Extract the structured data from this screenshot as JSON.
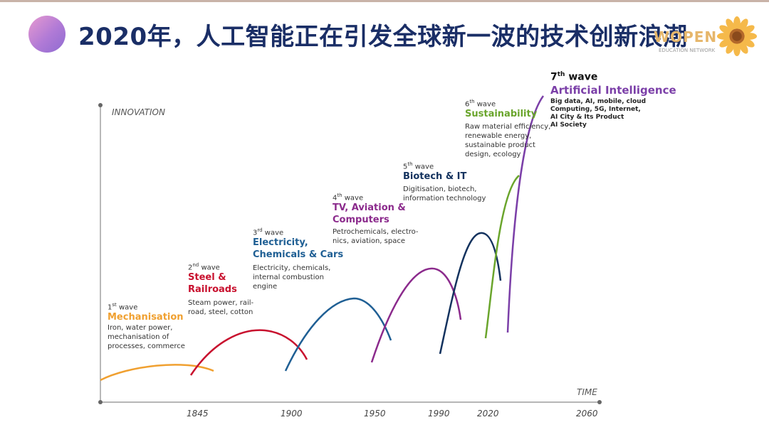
{
  "slide": {
    "title": "2020年，人工智能正在引发全球新一波的技术创新浪潮",
    "logo_text": "WOPEN",
    "logo_sub": "EDUCATION NETWORK"
  },
  "axes": {
    "y_label": "INNOVATION",
    "x_label": "TIME",
    "years": [
      "1845",
      "1900",
      "1950",
      "1990",
      "2020",
      "2060"
    ]
  },
  "waves": [
    {
      "ordinal": "1",
      "sup": "st",
      "wave_word": "wave",
      "title_lines": [
        "Mechanisation"
      ],
      "desc_lines": [
        "Iron, water power,",
        "mechanisation of",
        "processes, commerce"
      ],
      "color": "#f0a030"
    },
    {
      "ordinal": "2",
      "sup": "nd",
      "wave_word": "wave",
      "title_lines": [
        "Steel &",
        "Railroads"
      ],
      "desc_lines": [
        "Steam power, rail-",
        "road, steel, cotton"
      ],
      "color": "#c8102e"
    },
    {
      "ordinal": "3",
      "sup": "rd",
      "wave_word": "wave",
      "title_lines": [
        "Electricity,",
        "Chemicals & Cars"
      ],
      "desc_lines": [
        "Electricity, chemicals,",
        "internal combustion",
        "engine"
      ],
      "color": "#1f5f94"
    },
    {
      "ordinal": "4",
      "sup": "th",
      "wave_word": "wave",
      "title_lines": [
        "TV, Aviation &",
        "Computers"
      ],
      "desc_lines": [
        "Petrochemicals, electro-",
        "nics, aviation, space"
      ],
      "color": "#8b2a8c"
    },
    {
      "ordinal": "5",
      "sup": "th",
      "wave_word": "wave",
      "title_lines": [
        "Biotech & IT"
      ],
      "desc_lines": [
        "Digitisation, biotech,",
        "information technology"
      ],
      "color": "#13325e"
    },
    {
      "ordinal": "6",
      "sup": "th",
      "wave_word": "wave",
      "title_lines": [
        "Sustainability"
      ],
      "desc_lines": [
        "Raw material efficiency,",
        "renewable energy,",
        "sustainable product",
        "design, ecology"
      ],
      "color": "#6aa52c"
    },
    {
      "ordinal": "7",
      "sup": "th",
      "wave_word": "wave",
      "title_lines": [
        "Artificial Intelligence"
      ],
      "desc_lines": [
        "Big data, AI, mobile, cloud",
        "Computing, 5G, Internet,",
        "AI City & Its Product",
        "AI Society"
      ],
      "color": "#7b3fa8"
    }
  ],
  "colors": {
    "axis": "#8a8a8a",
    "title": "#1a2e66"
  }
}
